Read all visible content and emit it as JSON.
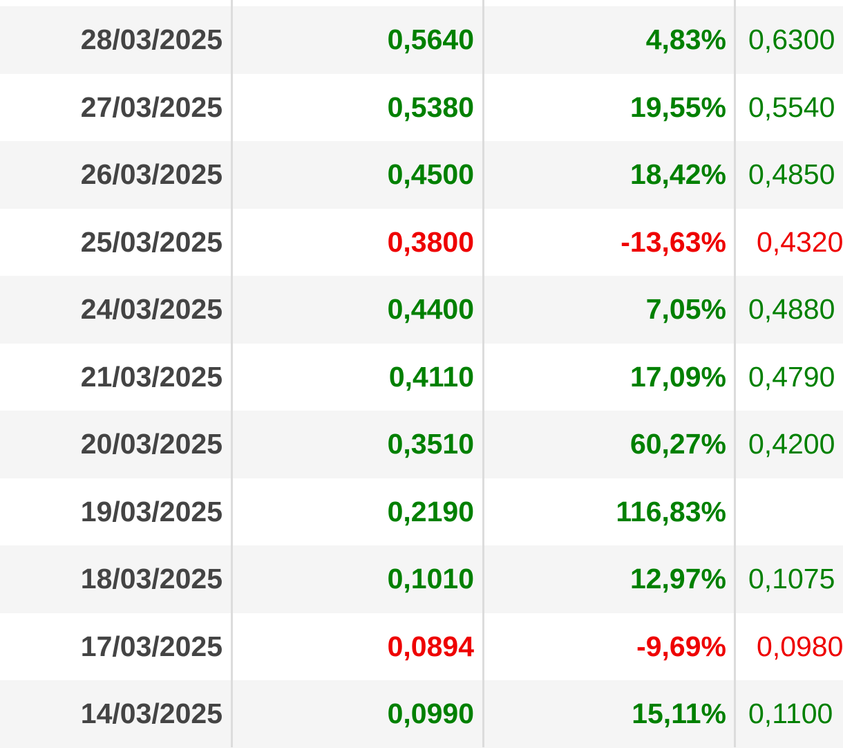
{
  "colors": {
    "up": "#008000",
    "down": "#ee0000",
    "date": "#444444",
    "row_alt": "#f5f5f5",
    "divider": "#dcdcdc"
  },
  "rows": [
    {
      "date": "28/03/2025",
      "price": "0,5640",
      "change": "4,83%",
      "last": "0,6300",
      "dir": "up"
    },
    {
      "date": "27/03/2025",
      "price": "0,5380",
      "change": "19,55%",
      "last": "0,5540",
      "dir": "up"
    },
    {
      "date": "26/03/2025",
      "price": "0,4500",
      "change": "18,42%",
      "last": "0,4850",
      "dir": "up"
    },
    {
      "date": "25/03/2025",
      "price": "0,3800",
      "change": "-13,63%",
      "last": "0,4320",
      "dir": "down"
    },
    {
      "date": "24/03/2025",
      "price": "0,4400",
      "change": "7,05%",
      "last": "0,4880",
      "dir": "up"
    },
    {
      "date": "21/03/2025",
      "price": "0,4110",
      "change": "17,09%",
      "last": "0,4790",
      "dir": "up"
    },
    {
      "date": "20/03/2025",
      "price": "0,3510",
      "change": "60,27%",
      "last": "0,4200",
      "dir": "up"
    },
    {
      "date": "19/03/2025",
      "price": "0,2190",
      "change": "116,83%",
      "last": "",
      "dir": "up"
    },
    {
      "date": "18/03/2025",
      "price": "0,1010",
      "change": "12,97%",
      "last": "0,1075",
      "dir": "up"
    },
    {
      "date": "17/03/2025",
      "price": "0,0894",
      "change": "-9,69%",
      "last": "0,0980",
      "dir": "down"
    },
    {
      "date": "14/03/2025",
      "price": "0,0990",
      "change": "15,11%",
      "last": "0,1100",
      "dir": "up"
    }
  ]
}
